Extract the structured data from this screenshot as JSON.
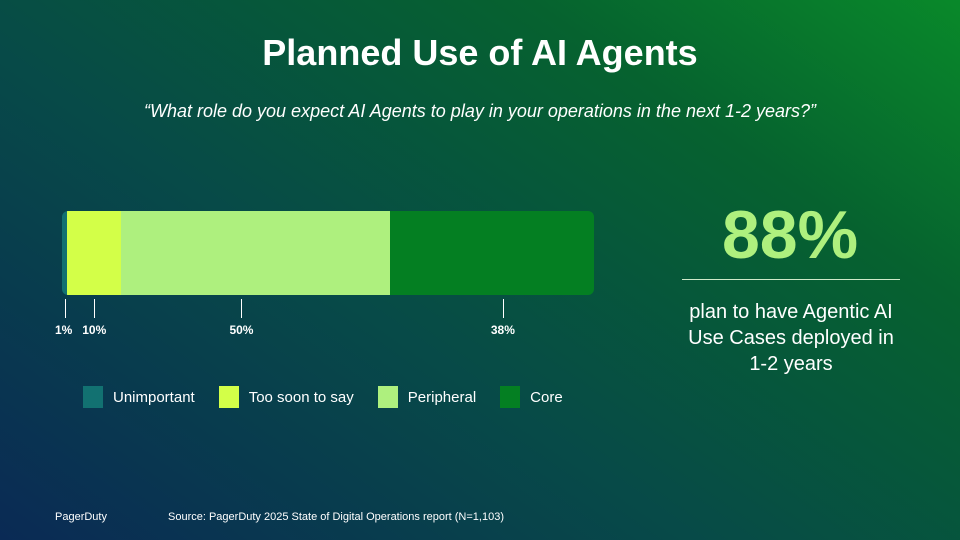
{
  "colors": {
    "unimportant": "#127171",
    "too_soon": "#d3ff48",
    "peripheral": "#aef07e",
    "core": "#047f22"
  },
  "chart_data": {
    "type": "bar",
    "orientation": "horizontal-stacked",
    "title": "Planned Use of AI Agents",
    "subtitle": "“What role do you expect AI Agents to play in your operations in the next 1-2 years?”",
    "series": [
      {
        "name": "Unimportant",
        "value": 1,
        "label": "1%",
        "color": "#127171"
      },
      {
        "name": "Too soon to say",
        "value": 10,
        "label": "10%",
        "color": "#d3ff48"
      },
      {
        "name": "Peripheral",
        "value": 50,
        "label": "50%",
        "color": "#aef07e"
      },
      {
        "name": "Core",
        "value": 38,
        "label": "38%",
        "color": "#047f22"
      }
    ],
    "legend": "bottom"
  },
  "stat": {
    "value": "88%",
    "text": "plan to have Agentic AI Use Cases deployed in 1-2 years"
  },
  "footer": {
    "logo": "PagerDuty",
    "source": "Source: PagerDuty 2025 State of Digital Operations report (N=1,103)"
  }
}
